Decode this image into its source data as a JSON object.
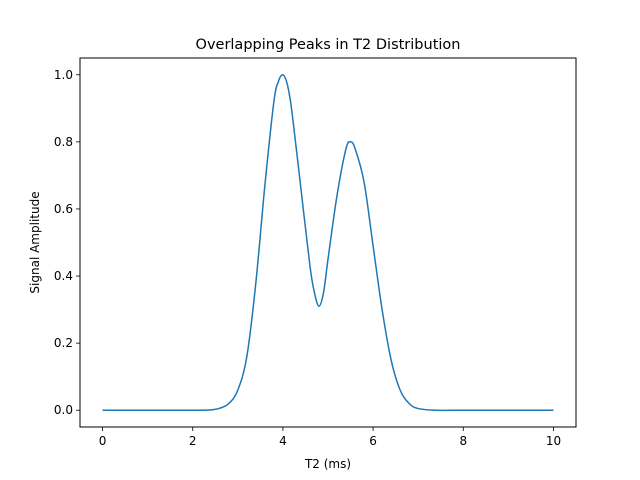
{
  "chart_data": {
    "type": "line",
    "title": "Overlapping Peaks in T2 Distribution",
    "xlabel": "T2 (ms)",
    "ylabel": "Signal Amplitude",
    "xlim": [
      -0.5,
      10.5
    ],
    "ylim": [
      -0.05,
      1.05
    ],
    "x_ticks": [
      0,
      2,
      4,
      6,
      8,
      10
    ],
    "x_tick_labels": [
      "0",
      "2",
      "4",
      "6",
      "8",
      "10"
    ],
    "y_ticks": [
      0.0,
      0.2,
      0.4,
      0.6,
      0.8,
      1.0
    ],
    "y_tick_labels": [
      "0.0",
      "0.2",
      "0.4",
      "0.6",
      "0.8",
      "1.0"
    ],
    "grid": false,
    "series": [
      {
        "color": "#1f77b4",
        "x": [
          0.0,
          1.0,
          2.0,
          2.4,
          2.6,
          2.8,
          3.0,
          3.2,
          3.4,
          3.6,
          3.8,
          3.9,
          4.0,
          4.1,
          4.2,
          4.4,
          4.6,
          4.7,
          4.8,
          4.9,
          5.0,
          5.2,
          5.4,
          5.5,
          5.6,
          5.8,
          6.0,
          6.2,
          6.4,
          6.6,
          6.8,
          7.0,
          7.4,
          8.0,
          9.0,
          10.0
        ],
        "y": [
          0.0,
          0.0,
          0.0,
          0.001,
          0.006,
          0.02,
          0.06,
          0.16,
          0.38,
          0.67,
          0.92,
          0.98,
          1.0,
          0.97,
          0.89,
          0.66,
          0.43,
          0.35,
          0.31,
          0.35,
          0.45,
          0.64,
          0.78,
          0.8,
          0.78,
          0.68,
          0.49,
          0.3,
          0.15,
          0.06,
          0.02,
          0.005,
          0.0,
          0.0,
          0.0,
          0.0
        ]
      }
    ]
  }
}
